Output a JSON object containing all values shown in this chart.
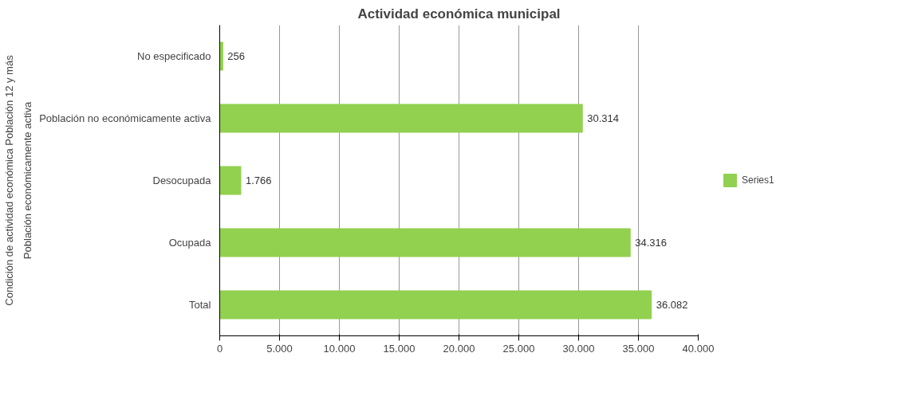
{
  "chart_data": {
    "type": "bar",
    "orientation": "horizontal",
    "title": "Actividad económica municipal",
    "ylabel": "Condición de actividad económica Población 12 y más",
    "annotations": [
      "Población económicamente activa"
    ],
    "categories": [
      "No especificado",
      "Población no económicamente activa",
      "Desocupada",
      "Ocupada",
      "Total"
    ],
    "series": [
      {
        "name": "Series1",
        "color": "#92d050",
        "values": [
          256,
          30314,
          1766,
          34316,
          36082
        ],
        "value_labels": [
          "256",
          "30.314",
          "1.766",
          "34.316",
          "36.082"
        ]
      }
    ],
    "xlim": [
      0,
      40000
    ],
    "xticks": [
      {
        "value": 0,
        "label": "0"
      },
      {
        "value": 5000,
        "label": "5.000"
      },
      {
        "value": 10000,
        "label": "10.000"
      },
      {
        "value": 15000,
        "label": "15.000"
      },
      {
        "value": 20000,
        "label": "20.000"
      },
      {
        "value": 25000,
        "label": "25.000"
      },
      {
        "value": 30000,
        "label": "30.000"
      },
      {
        "value": 35000,
        "label": "35.000"
      },
      {
        "value": 40000,
        "label": "40.000"
      }
    ],
    "grid": "x",
    "legend": "right"
  }
}
